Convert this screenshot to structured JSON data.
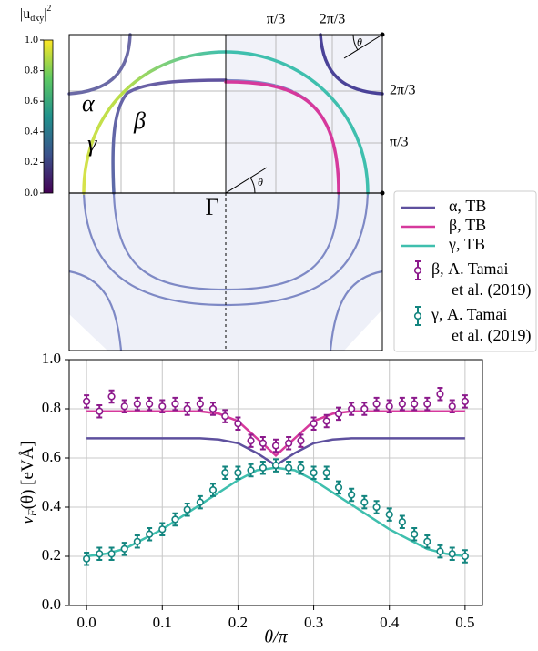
{
  "chart_data": [
    {
      "type": "fermi-surface",
      "colorbar_label": {
        "base": "|u",
        "sub": "dxy",
        "close": "|",
        "sup": "2"
      },
      "colorbar_lim": [
        0,
        1
      ],
      "colorbar_ticks": [
        {
          "value": 0,
          "label": "0.0"
        },
        {
          "value": 0.2,
          "label": "0.2"
        },
        {
          "value": 0.4,
          "label": "0.4"
        },
        {
          "value": 0.6,
          "label": "0.6"
        },
        {
          "value": 0.8,
          "label": "0.8"
        },
        {
          "value": 1,
          "label": "1.0"
        }
      ],
      "band_labels": [
        "α",
        "β",
        "γ"
      ],
      "center_label": "Γ",
      "angle_label": "θ",
      "k_ticks_top": [
        "π/3",
        "2π/3"
      ],
      "k_ticks_right": [
        "2π/3",
        "π/3"
      ]
    },
    {
      "type": "line",
      "x_label": "θ/π",
      "y_label": {
        "main": "v",
        "sub": "F",
        "rest": "(θ) [eVÅ]"
      },
      "xlim": [
        -0.023,
        0.523
      ],
      "ylim": [
        0,
        1
      ],
      "xticks": [
        {
          "value": 0,
          "label": "0.0"
        },
        {
          "value": 0.1,
          "label": "0.1"
        },
        {
          "value": 0.2,
          "label": "0.2"
        },
        {
          "value": 0.3,
          "label": "0.3"
        },
        {
          "value": 0.4,
          "label": "0.4"
        },
        {
          "value": 0.5,
          "label": "0.5"
        }
      ],
      "yticks": [
        {
          "value": 0,
          "label": "0.0"
        },
        {
          "value": 0.2,
          "label": "0.2"
        },
        {
          "value": 0.4,
          "label": "0.4"
        },
        {
          "value": 0.6,
          "label": "0.6"
        },
        {
          "value": 0.8,
          "label": "0.8"
        },
        {
          "value": 1,
          "label": "1.0"
        }
      ],
      "grid": true,
      "series": [
        {
          "name": "α, TB",
          "color": "#5e509e",
          "style": "line",
          "x": [
            0,
            0.025,
            0.05,
            0.075,
            0.1,
            0.125,
            0.15,
            0.175,
            0.2,
            0.225,
            0.25,
            0.275,
            0.3,
            0.325,
            0.35,
            0.375,
            0.4,
            0.425,
            0.45,
            0.475,
            0.5
          ],
          "values": [
            0.68,
            0.68,
            0.68,
            0.68,
            0.68,
            0.68,
            0.68,
            0.675,
            0.66,
            0.62,
            0.57,
            0.62,
            0.66,
            0.675,
            0.68,
            0.68,
            0.68,
            0.68,
            0.68,
            0.68,
            0.68
          ]
        },
        {
          "name": "β, TB",
          "color": "#d6399c",
          "style": "line",
          "x": [
            0,
            0.025,
            0.05,
            0.075,
            0.1,
            0.125,
            0.15,
            0.175,
            0.2,
            0.225,
            0.25,
            0.275,
            0.3,
            0.325,
            0.35,
            0.375,
            0.4,
            0.425,
            0.45,
            0.475,
            0.5
          ],
          "values": [
            0.79,
            0.79,
            0.79,
            0.79,
            0.79,
            0.79,
            0.79,
            0.78,
            0.75,
            0.68,
            0.61,
            0.68,
            0.75,
            0.78,
            0.79,
            0.79,
            0.79,
            0.79,
            0.79,
            0.79,
            0.79
          ]
        },
        {
          "name": "γ, TB",
          "color": "#3fbfae",
          "style": "line",
          "x": [
            0,
            0.025,
            0.05,
            0.075,
            0.1,
            0.125,
            0.15,
            0.175,
            0.2,
            0.225,
            0.25,
            0.275,
            0.3,
            0.325,
            0.35,
            0.375,
            0.4,
            0.425,
            0.45,
            0.475,
            0.5
          ],
          "values": [
            0.2,
            0.21,
            0.23,
            0.27,
            0.31,
            0.36,
            0.41,
            0.46,
            0.51,
            0.55,
            0.56,
            0.55,
            0.51,
            0.46,
            0.41,
            0.36,
            0.31,
            0.27,
            0.23,
            0.21,
            0.2
          ]
        },
        {
          "name": "β, A. Tamai et al. (2019)",
          "color": "#8c1a8c",
          "style": "errorbar",
          "error": 0.025,
          "x": [
            0,
            0.017,
            0.033,
            0.05,
            0.067,
            0.083,
            0.1,
            0.117,
            0.133,
            0.15,
            0.167,
            0.183,
            0.2,
            0.217,
            0.233,
            0.25,
            0.267,
            0.283,
            0.3,
            0.317,
            0.333,
            0.35,
            0.367,
            0.383,
            0.4,
            0.417,
            0.433,
            0.45,
            0.467,
            0.483,
            0.5
          ],
          "values": [
            0.83,
            0.79,
            0.85,
            0.81,
            0.82,
            0.82,
            0.81,
            0.82,
            0.8,
            0.82,
            0.8,
            0.77,
            0.74,
            0.67,
            0.66,
            0.65,
            0.66,
            0.67,
            0.74,
            0.75,
            0.78,
            0.8,
            0.8,
            0.82,
            0.81,
            0.82,
            0.82,
            0.82,
            0.86,
            0.81,
            0.83
          ]
        },
        {
          "name": "γ, A. Tamai et al. (2019)",
          "color": "#13857f",
          "style": "errorbar",
          "error": 0.025,
          "x": [
            0,
            0.017,
            0.033,
            0.05,
            0.067,
            0.083,
            0.1,
            0.117,
            0.133,
            0.15,
            0.167,
            0.183,
            0.2,
            0.217,
            0.233,
            0.25,
            0.267,
            0.283,
            0.3,
            0.317,
            0.333,
            0.35,
            0.367,
            0.383,
            0.4,
            0.417,
            0.433,
            0.45,
            0.467,
            0.483,
            0.5
          ],
          "values": [
            0.19,
            0.21,
            0.21,
            0.23,
            0.26,
            0.29,
            0.31,
            0.35,
            0.39,
            0.42,
            0.47,
            0.54,
            0.54,
            0.55,
            0.56,
            0.57,
            0.56,
            0.56,
            0.54,
            0.54,
            0.48,
            0.45,
            0.42,
            0.4,
            0.37,
            0.34,
            0.29,
            0.26,
            0.22,
            0.21,
            0.2
          ]
        }
      ]
    }
  ]
}
